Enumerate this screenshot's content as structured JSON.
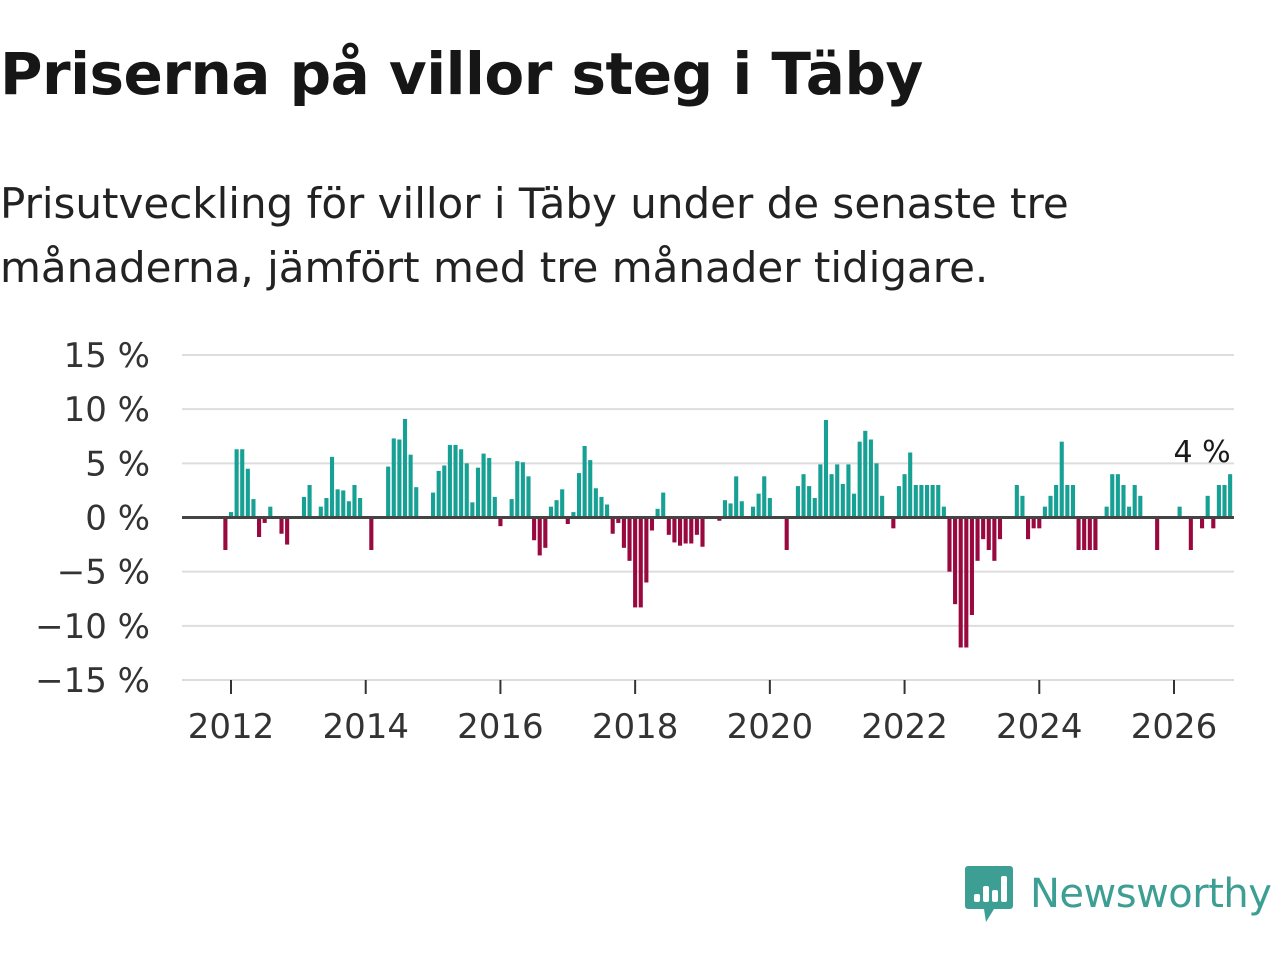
{
  "header": {
    "title": "Priserna på villor steg i Täby",
    "subtitle": "Prisutveckling för villor i Täby under de senaste tre månaderna, jämfört med tre månader tidigare."
  },
  "brand": {
    "name": "Newsworthy"
  },
  "colors": {
    "positive": "#17a195",
    "negative": "#99093f",
    "grid": "#dddddd",
    "zero_line": "#444444",
    "brand": "#3d9e94"
  },
  "chart_data": {
    "type": "bar",
    "title": "Priserna på villor steg i Täby",
    "xlabel": "",
    "ylabel": "",
    "ylim": [
      -15,
      15
    ],
    "y_ticks": [
      15,
      10,
      5,
      0,
      -5,
      -10,
      -15
    ],
    "y_tick_labels": [
      "15 %",
      "10 %",
      "5 %",
      "0 %",
      "−5 %",
      "−10 %",
      "−15 %"
    ],
    "x_ticks": [
      2012,
      2014,
      2016,
      2018,
      2020,
      2022,
      2024,
      2026
    ],
    "x_tick_labels": [
      "2012",
      "2014",
      "2016",
      "2018",
      "2020",
      "2022",
      "2024",
      "2026"
    ],
    "start": "2011-12",
    "frequency": "monthly",
    "last_value_label": "4 %",
    "values": [
      -3,
      0.5,
      6.3,
      6.3,
      4.5,
      1.7,
      -1.8,
      -0.5,
      1,
      0,
      -1.5,
      -2.5,
      0,
      0,
      1.9,
      3,
      0,
      1,
      1.8,
      5.6,
      2.6,
      2.5,
      1.5,
      3,
      1.8,
      0,
      -3,
      0,
      0,
      4.7,
      7.3,
      7.2,
      9.1,
      5.8,
      2.8,
      0,
      0,
      2.3,
      4.3,
      4.8,
      6.7,
      6.7,
      6.3,
      5,
      1.4,
      4.6,
      5.9,
      5.5,
      1.9,
      -0.8,
      0,
      1.7,
      5.2,
      5.1,
      3.8,
      -2.1,
      -3.5,
      -2.8,
      1,
      1.6,
      2.6,
      -0.6,
      0.5,
      4.1,
      6.6,
      5.3,
      2.7,
      1.9,
      1.2,
      -1.5,
      -0.5,
      -2.8,
      -4,
      -8.3,
      -8.3,
      -6,
      -1.2,
      0.8,
      2.3,
      -1.6,
      -2.3,
      -2.6,
      -2.4,
      -2.4,
      -1.6,
      -2.7,
      0,
      0,
      -0.3,
      1.6,
      1.3,
      3.8,
      1.5,
      0,
      1,
      2.2,
      3.8,
      1.8,
      0,
      0,
      -3,
      0,
      2.9,
      4,
      2.9,
      1.8,
      4.9,
      9,
      4,
      4.9,
      3.1,
      4.9,
      2.2,
      7,
      8,
      7.2,
      5,
      2,
      0,
      -1,
      2.9,
      4,
      6,
      3,
      3,
      3,
      3,
      3,
      1,
      -5,
      -8,
      -12,
      -12,
      -9,
      -4,
      -2,
      -3,
      -4,
      -2,
      0,
      0,
      3,
      2,
      -2,
      -1,
      -1,
      1,
      2,
      3,
      7,
      3,
      3,
      -3,
      -3,
      -3,
      -3,
      0,
      1,
      4,
      4,
      3,
      1,
      3,
      2,
      0,
      0,
      -3,
      0,
      0,
      0,
      1,
      0,
      -3,
      0,
      -1,
      2,
      -1,
      3,
      3,
      4
    ]
  }
}
